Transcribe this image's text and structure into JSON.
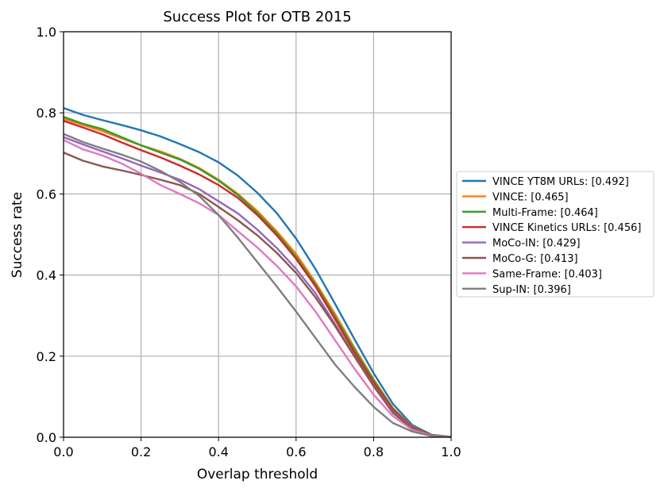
{
  "chart_data": {
    "type": "line",
    "title": "Success Plot for OTB 2015",
    "xlabel": "Overlap threshold",
    "ylabel": "Success rate",
    "xlim": [
      0,
      1
    ],
    "ylim": [
      0,
      1
    ],
    "grid": true,
    "legend_position": "right-outside",
    "x_ticks": [
      "0.0",
      "0.2",
      "0.4",
      "0.6",
      "0.8",
      "1.0"
    ],
    "y_ticks": [
      "0.0",
      "0.2",
      "0.4",
      "0.6",
      "0.8",
      "1.0"
    ],
    "x": [
      0.0,
      0.05,
      0.1,
      0.15,
      0.2,
      0.25,
      0.3,
      0.35,
      0.4,
      0.45,
      0.5,
      0.55,
      0.6,
      0.65,
      0.7,
      0.75,
      0.8,
      0.85,
      0.9,
      0.95,
      1.0
    ],
    "series": [
      {
        "name": "VINCE YT8M URLs: [0.492]",
        "color": "#1f77b4",
        "values": [
          0.812,
          0.795,
          0.782,
          0.77,
          0.757,
          0.742,
          0.723,
          0.703,
          0.678,
          0.645,
          0.603,
          0.553,
          0.49,
          0.415,
          0.33,
          0.243,
          0.158,
          0.082,
          0.03,
          0.006,
          0.001
        ]
      },
      {
        "name": "VINCE: [0.465]",
        "color": "#ff7f0e",
        "values": [
          0.785,
          0.77,
          0.755,
          0.737,
          0.72,
          0.705,
          0.687,
          0.664,
          0.635,
          0.6,
          0.558,
          0.508,
          0.452,
          0.382,
          0.305,
          0.222,
          0.143,
          0.072,
          0.026,
          0.005,
          0.001
        ]
      },
      {
        "name": "Multi-Frame: [0.464]",
        "color": "#2ca02c",
        "values": [
          0.79,
          0.773,
          0.76,
          0.74,
          0.72,
          0.702,
          0.685,
          0.662,
          0.633,
          0.597,
          0.553,
          0.503,
          0.445,
          0.377,
          0.298,
          0.217,
          0.14,
          0.07,
          0.025,
          0.005,
          0.001
        ]
      },
      {
        "name": "VINCE Kinetics URLs: [0.456]",
        "color": "#d62728",
        "values": [
          0.78,
          0.764,
          0.747,
          0.727,
          0.708,
          0.69,
          0.67,
          0.648,
          0.622,
          0.59,
          0.548,
          0.498,
          0.44,
          0.372,
          0.292,
          0.21,
          0.135,
          0.067,
          0.024,
          0.005,
          0.001
        ]
      },
      {
        "name": "MoCo-IN: [0.429]",
        "color": "#9467bd",
        "values": [
          0.74,
          0.722,
          0.705,
          0.688,
          0.67,
          0.653,
          0.635,
          0.612,
          0.582,
          0.552,
          0.512,
          0.467,
          0.415,
          0.355,
          0.28,
          0.202,
          0.128,
          0.063,
          0.022,
          0.004,
          0.001
        ]
      },
      {
        "name": "MoCo-G: [0.413]",
        "color": "#8c564b",
        "values": [
          0.702,
          0.682,
          0.668,
          0.658,
          0.647,
          0.635,
          0.622,
          0.6,
          0.568,
          0.535,
          0.498,
          0.455,
          0.405,
          0.345,
          0.275,
          0.2,
          0.126,
          0.06,
          0.021,
          0.004,
          0.001
        ]
      },
      {
        "name": "Same-Frame: [0.403]",
        "color": "#e377c2",
        "values": [
          0.733,
          0.71,
          0.695,
          0.675,
          0.65,
          0.622,
          0.6,
          0.577,
          0.548,
          0.508,
          0.468,
          0.423,
          0.372,
          0.31,
          0.24,
          0.17,
          0.105,
          0.052,
          0.018,
          0.004,
          0.001
        ]
      },
      {
        "name": "Sup-IN: [0.396]",
        "color": "#7f7f7f",
        "values": [
          0.748,
          0.728,
          0.712,
          0.697,
          0.68,
          0.657,
          0.63,
          0.595,
          0.548,
          0.492,
          0.432,
          0.372,
          0.31,
          0.245,
          0.18,
          0.125,
          0.075,
          0.035,
          0.014,
          0.003,
          0.001
        ]
      }
    ]
  }
}
